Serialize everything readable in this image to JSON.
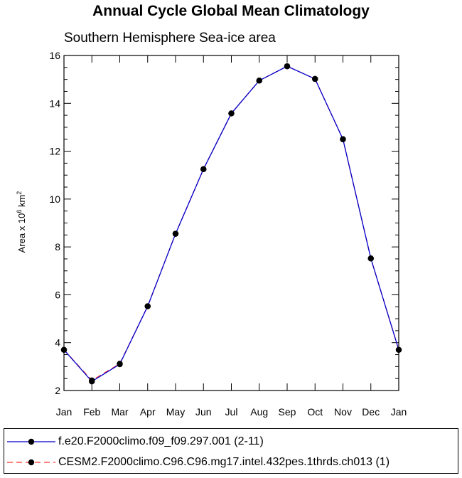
{
  "chart_data": {
    "type": "line",
    "title": "Annual Cycle Global Mean Climatology",
    "subtitle": "Southern Hemisphere Sea-ice area",
    "ylabel_main": "Area x 10",
    "ylabel_sup1": "6",
    "ylabel_unit": " km",
    "ylabel_sup2": "2",
    "xlabel": "",
    "categories": [
      "Jan",
      "Feb",
      "Mar",
      "Apr",
      "May",
      "Jun",
      "Jul",
      "Aug",
      "Sep",
      "Oct",
      "Nov",
      "Dec",
      "Jan"
    ],
    "yticks": [
      2,
      4,
      6,
      8,
      10,
      12,
      14,
      16
    ],
    "ylim": [
      2,
      16
    ],
    "series": [
      {
        "name": "f.e20.F2000climo.f09_f09.297.001 (2-11)",
        "color": "#0000cc",
        "dash": "solid",
        "values": [
          3.7,
          2.38,
          3.1,
          5.52,
          8.55,
          11.25,
          13.58,
          14.95,
          15.55,
          15.02,
          12.5,
          7.52,
          3.7
        ]
      },
      {
        "name": "CESM2.F2000climo.C96.C96.mg17.intel.432pes.1thrds.ch013 (1)",
        "color": "#ff3333",
        "dash": "dashed",
        "values": [
          3.7,
          2.42,
          3.12,
          5.52,
          8.55,
          11.25,
          13.58,
          14.95,
          15.55,
          15.02,
          12.5,
          7.52,
          3.7
        ]
      }
    ]
  },
  "legend": {
    "items": [
      {
        "label": "f.e20.F2000climo.f09_f09.297.001 (2-11)"
      },
      {
        "label": "CESM2.F2000climo.C96.C96.mg17.intel.432pes.1thrds.ch013 (1)"
      }
    ]
  }
}
